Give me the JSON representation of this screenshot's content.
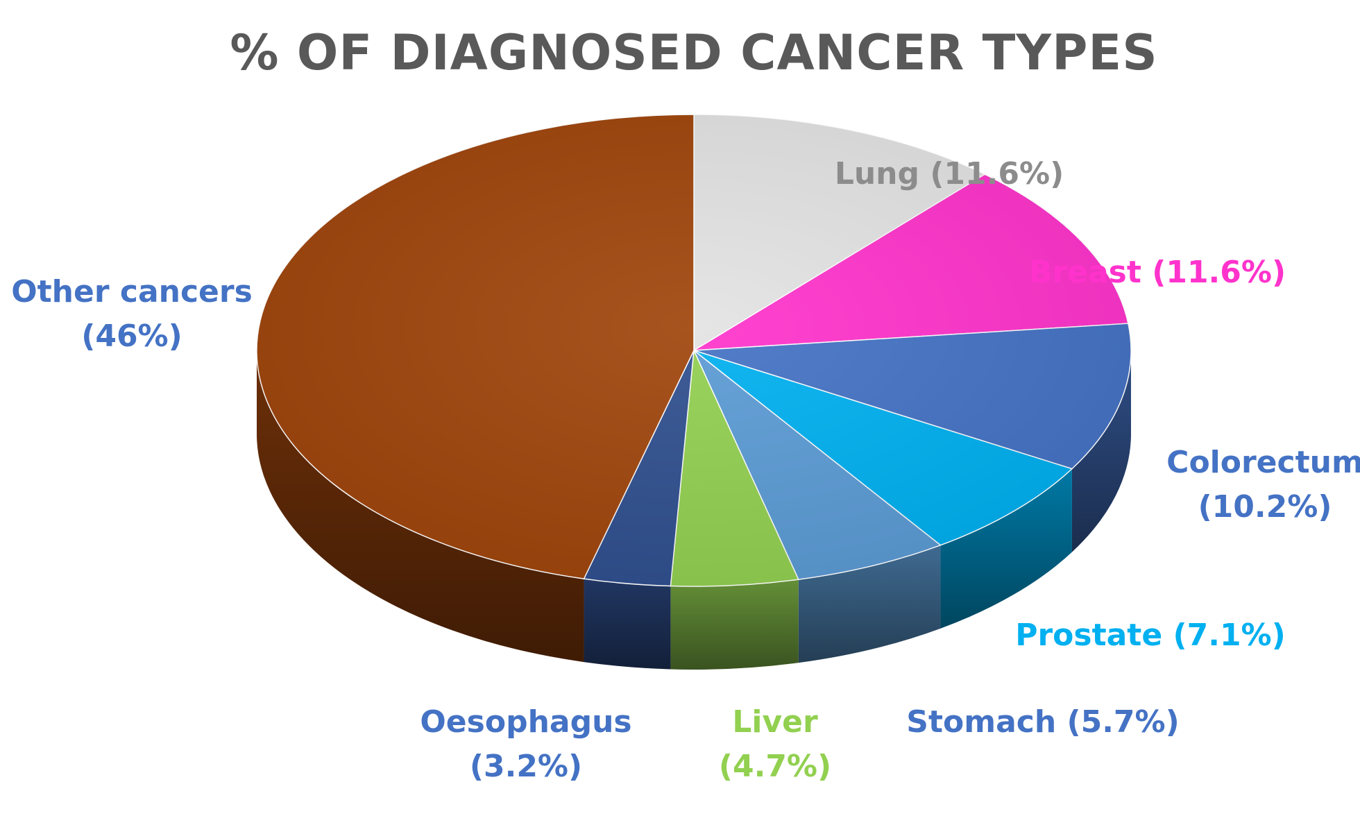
{
  "chart_data": {
    "type": "pie",
    "title": "% OF DIAGNOSED CANCER TYPES",
    "three_d": true,
    "slices": [
      {
        "category": "Lung",
        "value": 11.6,
        "label_lines": [
          "Lung (11.6%)"
        ],
        "color": "#E3E3E3",
        "label_color": "#8C8C8C"
      },
      {
        "category": "Breast",
        "value": 11.6,
        "label_lines": [
          "Breast (11.6%)"
        ],
        "color": "#FF33CC",
        "label_color": "#FF33CC"
      },
      {
        "category": "Colorectum",
        "value": 10.2,
        "label_lines": [
          "Colorectum",
          "(10.2%)"
        ],
        "color": "#4472C4",
        "label_color": "#4472C4"
      },
      {
        "category": "Prostate",
        "value": 7.1,
        "label_lines": [
          "Prostate (7.1%)"
        ],
        "color": "#00B0F0",
        "label_color": "#00B0F0"
      },
      {
        "category": "Stomach",
        "value": 5.7,
        "label_lines": [
          "Stomach (5.7%)"
        ],
        "color": "#5B9BD5",
        "label_color": "#4472C4"
      },
      {
        "category": "Liver",
        "value": 4.7,
        "label_lines": [
          "Liver",
          "(4.7%)"
        ],
        "color": "#92D050",
        "label_color": "#92D050"
      },
      {
        "category": "Oesophagus",
        "value": 3.2,
        "label_lines": [
          "Oesophagus",
          "(3.2%)"
        ],
        "color": "#2F4F8F",
        "label_color": "#4472C4"
      },
      {
        "category": "Other cancers",
        "value": 46,
        "label_lines": [
          "Other cancers",
          "(46%)"
        ],
        "color": "#A0450C",
        "label_color": "#4472C4"
      }
    ]
  }
}
